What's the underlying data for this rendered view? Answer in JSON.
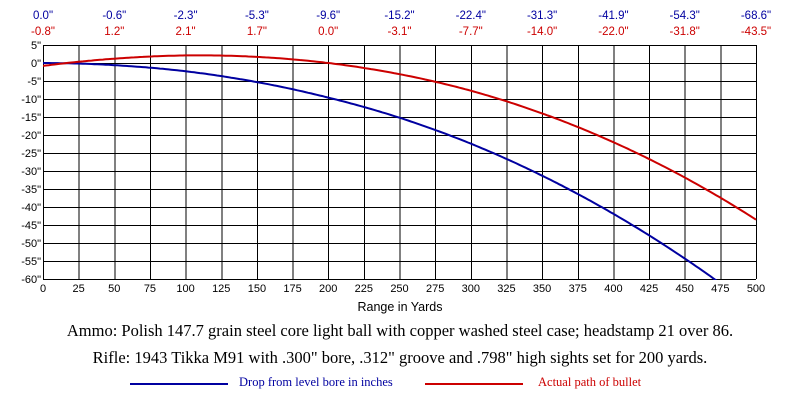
{
  "chart_data": {
    "type": "line",
    "xlabel": "Range in Yards",
    "x": [
      0,
      25,
      50,
      75,
      100,
      125,
      150,
      175,
      200,
      225,
      250,
      275,
      300,
      325,
      350,
      375,
      400,
      425,
      450,
      475,
      500
    ],
    "xlim": [
      0,
      500
    ],
    "ylim": [
      -60,
      5
    ],
    "x_ticks": [
      "0",
      "25",
      "50",
      "75",
      "100",
      "125",
      "150",
      "175",
      "200",
      "225",
      "250",
      "275",
      "300",
      "325",
      "350",
      "375",
      "400",
      "425",
      "450",
      "475",
      "500"
    ],
    "y_ticks": [
      {
        "value": 5,
        "label": "5\""
      },
      {
        "value": 0,
        "label": "0\""
      },
      {
        "value": -5,
        "label": "-5\""
      },
      {
        "value": -10,
        "label": "-10\""
      },
      {
        "value": -15,
        "label": "-15\""
      },
      {
        "value": -20,
        "label": "-20\""
      },
      {
        "value": -25,
        "label": "-25\""
      },
      {
        "value": -30,
        "label": "-30\""
      },
      {
        "value": -35,
        "label": "-35\""
      },
      {
        "value": -40,
        "label": "-40\""
      },
      {
        "value": -45,
        "label": "-45\""
      },
      {
        "value": -50,
        "label": "-50\""
      },
      {
        "value": -55,
        "label": "-55\""
      },
      {
        "value": -60,
        "label": "-60\""
      }
    ],
    "grid": true,
    "top_labels": {
      "x": [
        0,
        50,
        100,
        150,
        200,
        250,
        300,
        350,
        400,
        450,
        500
      ],
      "drop": [
        "0.0\"",
        "-0.6\"",
        "-2.3\"",
        "-5.3\"",
        "-9.6\"",
        "-15.2\"",
        "-22.4\"",
        "-31.3\"",
        "-41.9\"",
        "-54.3\"",
        "-68.6\""
      ],
      "path": [
        "-0.8\"",
        "1.2\"",
        "2.1\"",
        "1.7\"",
        "0.0\"",
        "-3.1\"",
        "-7.7\"",
        "-14.0\"",
        "-22.0\"",
        "-31.8\"",
        "-43.5\""
      ]
    },
    "series": [
      {
        "name": "Drop from level bore in inches",
        "color": "#0000a0",
        "x": [
          0,
          50,
          100,
          150,
          200,
          250,
          300,
          350,
          400,
          450,
          500
        ],
        "values": [
          0.0,
          -0.6,
          -2.3,
          -5.3,
          -9.6,
          -15.2,
          -22.4,
          -31.3,
          -41.9,
          -54.3,
          -68.6
        ]
      },
      {
        "name": "Actual path of bullet",
        "color": "#cc0000",
        "x": [
          0,
          50,
          100,
          150,
          200,
          250,
          300,
          350,
          400,
          450,
          500
        ],
        "values": [
          -0.8,
          1.2,
          2.1,
          1.7,
          0.0,
          -3.1,
          -7.7,
          -14.0,
          -22.0,
          -31.8,
          -43.5
        ]
      }
    ]
  },
  "captions": {
    "ammo": "Ammo:  Polish 147.7 grain steel core light ball with copper washed steel case; headstamp 21 over 86.",
    "rifle": "Rifle:  1943 Tikka M91 with .300\" bore, .312\" groove and .798\" high sights set for 200 yards."
  },
  "colors": {
    "grid": "#000000",
    "background": "#ffffff"
  }
}
